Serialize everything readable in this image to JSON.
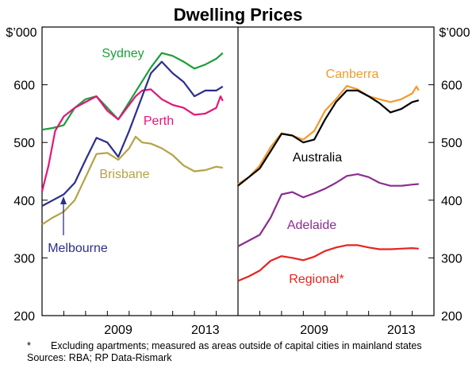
{
  "chart_data": {
    "type": "line",
    "title": "Dwelling Prices",
    "unit_label": "$’000",
    "ylim": [
      200,
      700
    ],
    "yticks": [
      200,
      300,
      400,
      500,
      600
    ],
    "xlim": [
      2005.0,
      2014.0
    ],
    "xticks": [
      2009,
      2013
    ],
    "grid": false,
    "panels": [
      {
        "position": "left",
        "series": [
          {
            "name": "Sydney",
            "color": "#1b9e3a",
            "x": [
              2005.0,
              2005.5,
              2006.0,
              2006.5,
              2007.0,
              2007.5,
              2008.0,
              2008.5,
              2009.0,
              2009.5,
              2010.0,
              2010.5,
              2011.0,
              2011.5,
              2012.0,
              2012.5,
              2013.0,
              2013.3
            ],
            "y": [
              522,
              525,
              530,
              560,
              575,
              580,
              560,
              540,
              570,
              600,
              630,
              655,
              650,
              640,
              628,
              635,
              645,
              655
            ]
          },
          {
            "name": "Perth",
            "color": "#e3167a",
            "x": [
              2005.0,
              2005.3,
              2005.6,
              2006.0,
              2006.5,
              2007.0,
              2007.5,
              2008.0,
              2008.5,
              2009.0,
              2009.3,
              2009.6,
              2010.0,
              2010.5,
              2011.0,
              2011.5,
              2012.0,
              2012.5,
              2013.0,
              2013.2,
              2013.3
            ],
            "y": [
              415,
              460,
              520,
              545,
              560,
              570,
              580,
              555,
              540,
              565,
              580,
              590,
              592,
              575,
              565,
              560,
              548,
              550,
              560,
              580,
              572
            ]
          },
          {
            "name": "Melbourne",
            "color": "#2b2f8c",
            "x": [
              2005.0,
              2005.5,
              2006.0,
              2006.5,
              2007.0,
              2007.5,
              2008.0,
              2008.5,
              2009.0,
              2009.5,
              2010.0,
              2010.5,
              2011.0,
              2011.5,
              2012.0,
              2012.5,
              2013.0,
              2013.3
            ],
            "y": [
              390,
              400,
              410,
              430,
              470,
              508,
              500,
              475,
              520,
              570,
              620,
              640,
              620,
              605,
              580,
              590,
              590,
              597
            ]
          },
          {
            "name": "Brisbane",
            "color": "#b5a245",
            "x": [
              2005.0,
              2005.5,
              2006.0,
              2006.5,
              2007.0,
              2007.5,
              2008.0,
              2008.5,
              2009.0,
              2009.3,
              2009.6,
              2010.0,
              2010.5,
              2011.0,
              2011.5,
              2012.0,
              2012.5,
              2013.0,
              2013.3
            ],
            "y": [
              358,
              370,
              380,
              400,
              440,
              480,
              482,
              470,
              490,
              510,
              500,
              498,
              490,
              478,
              460,
              450,
              452,
              458,
              456
            ]
          }
        ]
      },
      {
        "position": "right",
        "series": [
          {
            "name": "Canberra",
            "color": "#f39a2c",
            "x": [
              2005.0,
              2005.5,
              2006.0,
              2006.5,
              2007.0,
              2007.5,
              2008.0,
              2008.5,
              2009.0,
              2009.5,
              2010.0,
              2010.5,
              2011.0,
              2011.5,
              2012.0,
              2012.5,
              2013.0,
              2013.2,
              2013.3
            ],
            "y": [
              428,
              440,
              460,
              492,
              516,
              512,
              505,
              520,
              555,
              575,
              598,
              592,
              580,
              575,
              570,
              575,
              585,
              597,
              590
            ]
          },
          {
            "name": "Australia",
            "color": "#000000",
            "x": [
              2005.0,
              2005.5,
              2006.0,
              2006.5,
              2007.0,
              2007.5,
              2008.0,
              2008.5,
              2009.0,
              2009.5,
              2010.0,
              2010.5,
              2011.0,
              2011.5,
              2012.0,
              2012.5,
              2013.0,
              2013.3
            ],
            "y": [
              425,
              440,
              455,
              485,
              515,
              512,
              500,
              505,
              540,
              570,
              590,
              590,
              580,
              568,
              552,
              558,
              570,
              573
            ]
          },
          {
            "name": "Adelaide",
            "color": "#8b2d8f",
            "x": [
              2005.0,
              2005.5,
              2006.0,
              2006.5,
              2007.0,
              2007.5,
              2008.0,
              2008.5,
              2009.0,
              2009.5,
              2010.0,
              2010.5,
              2011.0,
              2011.5,
              2012.0,
              2012.5,
              2013.0,
              2013.3
            ],
            "y": [
              320,
              330,
              340,
              370,
              410,
              414,
              405,
              412,
              420,
              430,
              442,
              445,
              440,
              430,
              425,
              425,
              427,
              428
            ]
          },
          {
            "name": "Regional*",
            "color": "#e8231f",
            "x": [
              2005.0,
              2005.5,
              2006.0,
              2006.5,
              2007.0,
              2007.5,
              2008.0,
              2008.5,
              2009.0,
              2009.5,
              2010.0,
              2010.5,
              2011.0,
              2011.5,
              2012.0,
              2012.5,
              2013.0,
              2013.3
            ],
            "y": [
              260,
              268,
              278,
              295,
              303,
              300,
              296,
              302,
              312,
              318,
              322,
              322,
              318,
              315,
              315,
              316,
              317,
              316
            ]
          }
        ]
      }
    ],
    "footnote_mark": "*",
    "footnote": "Excluding apartments; measured as areas outside of capital cities in mainland states",
    "sources": "Sources: RBA; RP Data-Rismark"
  }
}
